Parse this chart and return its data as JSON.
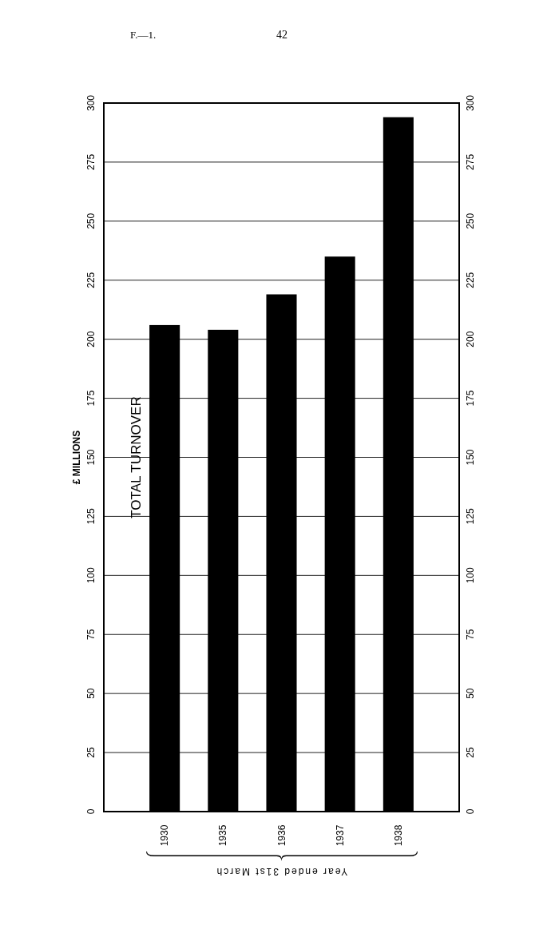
{
  "chart_data": {
    "type": "bar",
    "title": "TOTAL TURNOVER",
    "ylabel": "£ MILLIONS",
    "xlabel": "Year ended 31st March",
    "annotations": [
      "F.—1.",
      "42"
    ],
    "categories": [
      "1930",
      "1935",
      "1936",
      "1937",
      "1938"
    ],
    "values": [
      206,
      204,
      219,
      235,
      294
    ],
    "color": "#000000",
    "ylim": [
      0,
      300
    ],
    "yticks": [
      0,
      25,
      50,
      75,
      100,
      125,
      150,
      175,
      200,
      225,
      250,
      275,
      300
    ],
    "y2lim": [
      0,
      300
    ],
    "y2ticks": [
      0,
      25,
      50,
      75,
      100,
      125,
      150,
      175,
      200,
      225,
      250,
      275,
      300
    ],
    "grid": "y"
  }
}
